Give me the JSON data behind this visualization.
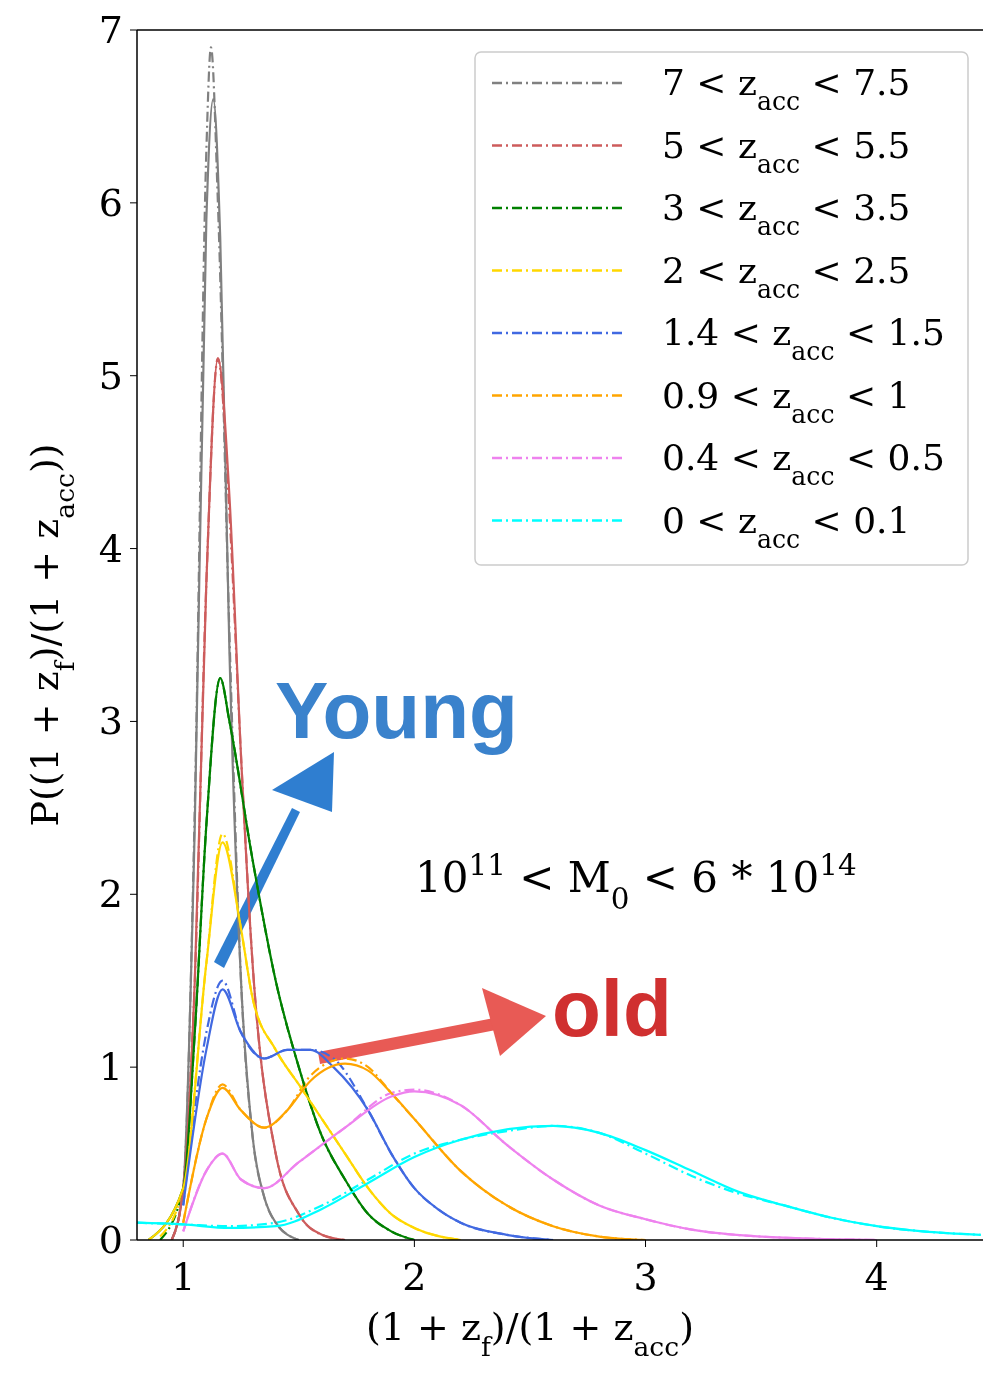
{
  "chart_data": {
    "type": "line",
    "xlabel": "(1 + z$_{f}$)/(1 + z$_{acc}$)",
    "ylabel": "P((1 + z$_{f}$)/(1 + z$_{acc}$))",
    "xlim": [
      0.8,
      4.46
    ],
    "ylim": [
      0,
      7
    ],
    "xticks": [
      1,
      2,
      3,
      4
    ],
    "yticks": [
      0,
      1,
      2,
      3,
      4,
      5,
      6,
      7
    ],
    "legend": "top right",
    "grid": false,
    "annotations": [
      "Young",
      "old",
      "10$^{11}$ < M$_{0}$ < 6 * 10$^{14}$"
    ],
    "series": [
      {
        "name": "7 < z$_{acc}$ < 7.5",
        "color": "#808080",
        "line_style": "dashed",
        "x": [
          0.95,
          1.0,
          1.05,
          1.1,
          1.12,
          1.15,
          1.2,
          1.25,
          1.3,
          1.35,
          1.4,
          1.5
        ],
        "values": [
          0,
          0.3,
          2.5,
          6.3,
          6.9,
          6.0,
          3.5,
          1.5,
          0.6,
          0.25,
          0.1,
          0
        ]
      },
      {
        "name": "5 < z$_{acc}$ < 5.5",
        "color": "#cd5c5c",
        "line_style": "dashed",
        "x": [
          0.95,
          1.0,
          1.05,
          1.1,
          1.15,
          1.2,
          1.25,
          1.3,
          1.4,
          1.5,
          1.6,
          1.7
        ],
        "values": [
          0,
          0.3,
          1.5,
          3.8,
          5.1,
          4.2,
          2.8,
          1.6,
          0.5,
          0.15,
          0.03,
          0
        ]
      },
      {
        "name": "3 < z$_{acc}$ < 3.5",
        "color": "#008000",
        "line_style": "dashed",
        "x": [
          0.9,
          1.0,
          1.05,
          1.1,
          1.16,
          1.2,
          1.3,
          1.4,
          1.5,
          1.6,
          1.7,
          1.8,
          1.9,
          2.0
        ],
        "values": [
          0,
          0.3,
          1.2,
          2.4,
          3.25,
          3.0,
          2.2,
          1.5,
          1.0,
          0.6,
          0.35,
          0.15,
          0.05,
          0
        ]
      },
      {
        "name": "2 < z$_{acc}$ < 2.5",
        "color": "#ffd700",
        "line_style": "dashed",
        "x": [
          0.9,
          1.0,
          1.1,
          1.17,
          1.25,
          1.3,
          1.4,
          1.5,
          1.6,
          1.7,
          1.8,
          1.9,
          2.0,
          2.2
        ],
        "values": [
          0.02,
          0.3,
          1.6,
          2.35,
          1.8,
          1.4,
          1.1,
          0.9,
          0.7,
          0.5,
          0.3,
          0.15,
          0.07,
          0
        ]
      },
      {
        "name": "1.4 < z$_{acc}$ < 1.5",
        "color": "#4169e1",
        "line_style": "dashed",
        "x": [
          1.0,
          1.1,
          1.17,
          1.25,
          1.35,
          1.45,
          1.55,
          1.65,
          1.8,
          1.9,
          2.0,
          2.1,
          2.2,
          2.4,
          2.6
        ],
        "values": [
          0.2,
          1.2,
          1.5,
          1.2,
          1.05,
          1.1,
          1.1,
          1.05,
          0.75,
          0.5,
          0.3,
          0.18,
          0.1,
          0.03,
          0
        ]
      },
      {
        "name": "0.9 < z$_{acc}$ < 1",
        "color": "#ffa500",
        "line_style": "dashed",
        "x": [
          1.0,
          1.1,
          1.17,
          1.25,
          1.35,
          1.45,
          1.55,
          1.7,
          1.8,
          1.9,
          2.0,
          2.2,
          2.4,
          2.6,
          2.8,
          3.0
        ],
        "values": [
          0.1,
          0.7,
          0.9,
          0.75,
          0.65,
          0.75,
          0.95,
          1.05,
          1.0,
          0.85,
          0.7,
          0.4,
          0.2,
          0.08,
          0.02,
          0
        ]
      },
      {
        "name": "0.4 < z$_{acc}$ < 0.5",
        "color": "#ee82ee",
        "line_style": "dashed",
        "x": [
          1.0,
          1.1,
          1.17,
          1.25,
          1.35,
          1.5,
          1.7,
          1.9,
          2.0,
          2.2,
          2.4,
          2.6,
          2.8,
          3.0,
          3.2,
          3.5,
          4.0
        ],
        "values": [
          0.05,
          0.4,
          0.5,
          0.35,
          0.3,
          0.45,
          0.65,
          0.85,
          0.87,
          0.78,
          0.55,
          0.35,
          0.2,
          0.12,
          0.06,
          0.02,
          0
        ]
      },
      {
        "name": "0 < z$_{acc}$ < 0.1",
        "color": "#00ffff",
        "line_style": "dashed",
        "x": [
          0.8,
          1.0,
          1.2,
          1.4,
          1.6,
          1.8,
          2.0,
          2.2,
          2.4,
          2.6,
          2.8,
          3.0,
          3.2,
          3.4,
          3.6,
          3.8,
          4.0,
          4.2,
          4.45
        ],
        "values": [
          0.1,
          0.09,
          0.08,
          0.1,
          0.2,
          0.35,
          0.5,
          0.58,
          0.63,
          0.66,
          0.62,
          0.5,
          0.37,
          0.27,
          0.2,
          0.13,
          0.08,
          0.05,
          0.03
        ]
      },
      {
        "color": "#808080",
        "line_style": "solid",
        "x": [
          0.95,
          1.0,
          1.05,
          1.1,
          1.13,
          1.16,
          1.2,
          1.25,
          1.3,
          1.35,
          1.4,
          1.5
        ],
        "values": [
          0,
          0.3,
          2.4,
          5.9,
          6.6,
          5.8,
          3.4,
          1.5,
          0.6,
          0.25,
          0.1,
          0
        ]
      },
      {
        "color": "#cd5c5c",
        "line_style": "solid",
        "x": [
          0.95,
          1.0,
          1.05,
          1.1,
          1.15,
          1.2,
          1.25,
          1.3,
          1.4,
          1.5,
          1.6,
          1.7
        ],
        "values": [
          0,
          0.3,
          1.5,
          3.8,
          5.1,
          4.3,
          2.8,
          1.6,
          0.5,
          0.15,
          0.03,
          0
        ]
      },
      {
        "color": "#008000",
        "line_style": "solid",
        "x": [
          0.85,
          1.0,
          1.05,
          1.1,
          1.16,
          1.2,
          1.3,
          1.4,
          1.5,
          1.6,
          1.7,
          1.8,
          1.9,
          2.0
        ],
        "values": [
          0,
          0.3,
          1.2,
          2.4,
          3.25,
          3.0,
          2.2,
          1.5,
          1.0,
          0.6,
          0.35,
          0.15,
          0.05,
          0
        ]
      },
      {
        "color": "#ffd700",
        "line_style": "solid",
        "x": [
          0.85,
          1.0,
          1.1,
          1.17,
          1.25,
          1.3,
          1.4,
          1.5,
          1.6,
          1.7,
          1.8,
          1.9,
          2.0,
          2.2
        ],
        "values": [
          0,
          0.3,
          1.6,
          2.3,
          1.8,
          1.4,
          1.1,
          0.9,
          0.7,
          0.5,
          0.3,
          0.15,
          0.07,
          0
        ]
      },
      {
        "color": "#4169e1",
        "line_style": "solid",
        "x": [
          1.0,
          1.1,
          1.17,
          1.25,
          1.35,
          1.45,
          1.55,
          1.65,
          1.8,
          1.9,
          2.0,
          2.1,
          2.2,
          2.4,
          2.6
        ],
        "values": [
          0.2,
          1.1,
          1.45,
          1.2,
          1.05,
          1.1,
          1.1,
          1.0,
          0.75,
          0.5,
          0.3,
          0.18,
          0.1,
          0.03,
          0
        ]
      },
      {
        "color": "#ffa500",
        "line_style": "solid",
        "x": [
          1.0,
          1.1,
          1.17,
          1.25,
          1.35,
          1.45,
          1.55,
          1.7,
          1.8,
          1.9,
          2.0,
          2.2,
          2.4,
          2.6,
          2.8,
          3.0
        ],
        "values": [
          0.1,
          0.7,
          0.88,
          0.75,
          0.65,
          0.75,
          0.92,
          1.02,
          0.98,
          0.85,
          0.7,
          0.4,
          0.2,
          0.08,
          0.02,
          0
        ]
      },
      {
        "color": "#ee82ee",
        "line_style": "solid",
        "x": [
          1.0,
          1.1,
          1.17,
          1.25,
          1.35,
          1.5,
          1.7,
          1.9,
          2.0,
          2.2,
          2.4,
          2.6,
          2.8,
          3.0,
          3.2,
          3.5,
          4.0
        ],
        "values": [
          0.05,
          0.4,
          0.5,
          0.35,
          0.3,
          0.45,
          0.65,
          0.83,
          0.86,
          0.78,
          0.55,
          0.35,
          0.2,
          0.12,
          0.06,
          0.02,
          0
        ]
      },
      {
        "color": "#00ffff",
        "line_style": "solid",
        "x": [
          0.8,
          1.0,
          1.2,
          1.4,
          1.6,
          1.8,
          2.0,
          2.2,
          2.4,
          2.6,
          2.8,
          3.0,
          3.2,
          3.4,
          3.6,
          3.8,
          4.0,
          4.2,
          4.45
        ],
        "values": [
          0.1,
          0.09,
          0.07,
          0.08,
          0.18,
          0.33,
          0.48,
          0.58,
          0.64,
          0.66,
          0.62,
          0.52,
          0.4,
          0.28,
          0.2,
          0.13,
          0.08,
          0.05,
          0.03
        ]
      }
    ]
  }
}
